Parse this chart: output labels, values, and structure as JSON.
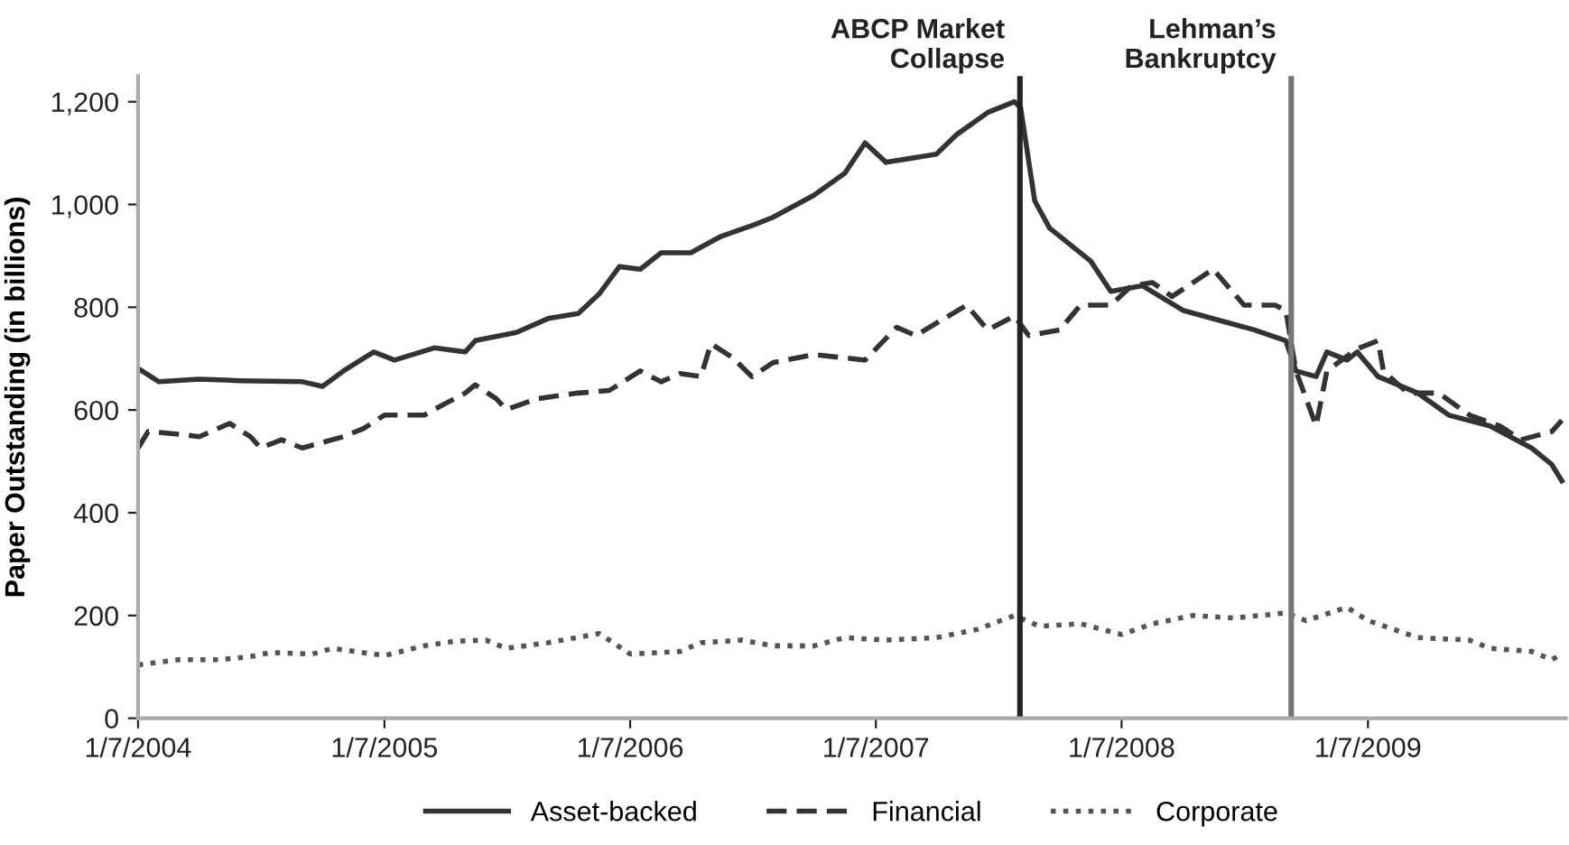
{
  "chart_data": {
    "type": "line",
    "ylabel": "Paper Outstanding (in billions)",
    "xlim": [
      "2004-01-07",
      "2009-10-28"
    ],
    "ylim": [
      0,
      1250
    ],
    "xticks": [
      {
        "value": "2004-01-07",
        "label": "1/7/2004"
      },
      {
        "value": "2005-01-07",
        "label": "1/7/2005"
      },
      {
        "value": "2006-01-07",
        "label": "1/7/2006"
      },
      {
        "value": "2007-01-07",
        "label": "1/7/2007"
      },
      {
        "value": "2008-01-07",
        "label": "1/7/2008"
      },
      {
        "value": "2009-01-07",
        "label": "1/7/2009"
      }
    ],
    "yticks": [
      0,
      200,
      400,
      600,
      800,
      {
        "value": 1000,
        "label": "1,000"
      },
      {
        "value": 1200,
        "label": "1,200"
      }
    ],
    "grid": false,
    "legend": "bottom",
    "marker": "none",
    "ref_lines": [
      {
        "axis": "x",
        "value": "2007-08-09",
        "label": "ABCP Market\nCollapse",
        "color": "#222222",
        "line_style": "solid"
      },
      {
        "axis": "x",
        "value": "2008-09-15",
        "label": "Lehman’s\nBankruptcy",
        "color": "#777777",
        "line_style": "solid"
      }
    ],
    "series": [
      {
        "name": "Asset-backed",
        "color": "#333333",
        "line_style": "solid",
        "x": [
          "2004-01-07",
          "2004-02-07",
          "2004-04-07",
          "2004-06-07",
          "2004-09-07",
          "2004-10-07",
          "2004-11-07",
          "2004-12-22",
          "2005-01-22",
          "2005-03-22",
          "2005-05-07",
          "2005-05-22",
          "2005-07-22",
          "2005-09-07",
          "2005-10-22",
          "2005-11-22",
          "2005-12-22",
          "2006-01-22",
          "2006-02-22",
          "2006-04-07",
          "2006-05-22",
          "2006-07-07",
          "2006-08-07",
          "2006-10-07",
          "2006-11-22",
          "2006-12-22",
          "2007-01-22",
          "2007-04-07",
          "2007-05-07",
          "2007-06-22",
          "2007-08-01",
          "2007-08-10",
          "2007-08-31",
          "2007-09-22",
          "2007-11-22",
          "2007-12-22",
          "2008-02-07",
          "2008-04-07",
          "2008-06-07",
          "2008-07-22",
          "2008-09-07",
          "2008-09-22",
          "2008-10-22",
          "2008-11-07",
          "2008-12-07",
          "2008-12-22",
          "2009-01-22",
          "2009-03-22",
          "2009-05-07",
          "2009-07-07",
          "2009-09-07",
          "2009-10-07",
          "2009-10-22"
        ],
        "values": [
          681,
          655,
          660,
          657,
          655,
          646,
          676,
          713,
          697,
          721,
          713,
          735,
          751,
          778,
          788,
          826,
          879,
          874,
          906,
          906,
          938,
          959,
          975,
          1018,
          1061,
          1120,
          1082,
          1098,
          1136,
          1179,
          1200,
          1189,
          1007,
          954,
          890,
          831,
          842,
          794,
          772,
          756,
          735,
          676,
          665,
          713,
          697,
          713,
          665,
          633,
          590,
          569,
          526,
          494,
          462
        ]
      },
      {
        "name": "Financial",
        "color": "#333333",
        "line_style": "dashed",
        "x": [
          "2004-01-07",
          "2004-01-22",
          "2004-03-07",
          "2004-04-07",
          "2004-05-22",
          "2004-06-22",
          "2004-07-07",
          "2004-08-07",
          "2004-09-07",
          "2004-10-07",
          "2004-11-07",
          "2004-12-07",
          "2005-01-07",
          "2005-03-07",
          "2005-03-22",
          "2005-05-07",
          "2005-05-22",
          "2005-06-22",
          "2005-07-07",
          "2005-08-22",
          "2005-10-22",
          "2005-12-07",
          "2006-01-22",
          "2006-02-22",
          "2006-03-22",
          "2006-04-22",
          "2006-05-07",
          "2006-06-07",
          "2006-07-07",
          "2006-08-07",
          "2006-10-07",
          "2006-12-22",
          "2007-02-07",
          "2007-03-07",
          "2007-05-22",
          "2007-06-22",
          "2007-08-01",
          "2007-08-22",
          "2007-10-07",
          "2007-11-07",
          "2007-12-22",
          "2008-01-22",
          "2008-02-22",
          "2008-03-22",
          "2008-05-22",
          "2008-07-07",
          "2008-08-22",
          "2008-09-07",
          "2008-09-22",
          "2008-10-22",
          "2008-11-07",
          "2008-12-22",
          "2009-01-22",
          "2009-01-30",
          "2009-03-07",
          "2009-04-22",
          "2009-06-07",
          "2009-07-22",
          "2009-08-22",
          "2009-10-07",
          "2009-10-22"
        ],
        "values": [
          526,
          558,
          553,
          548,
          574,
          548,
          526,
          542,
          526,
          537,
          548,
          564,
          590,
          590,
          601,
          633,
          649,
          622,
          601,
          622,
          633,
          638,
          676,
          655,
          671,
          665,
          729,
          703,
          665,
          692,
          708,
          697,
          761,
          745,
          804,
          756,
          783,
          745,
          756,
          804,
          804,
          842,
          848,
          821,
          874,
          804,
          804,
          794,
          676,
          569,
          676,
          719,
          735,
          676,
          633,
          633,
          590,
          569,
          542,
          558,
          580
        ]
      },
      {
        "name": "Corporate",
        "color": "#555555",
        "line_style": "dotted",
        "x": [
          "2004-01-07",
          "2004-03-07",
          "2004-05-07",
          "2004-06-22",
          "2004-07-22",
          "2004-09-22",
          "2004-10-22",
          "2005-01-07",
          "2005-03-07",
          "2005-04-22",
          "2005-06-07",
          "2005-07-07",
          "2005-09-07",
          "2005-11-22",
          "2006-01-07",
          "2006-03-22",
          "2006-04-22",
          "2006-06-22",
          "2006-08-07",
          "2006-10-07",
          "2006-11-22",
          "2007-01-22",
          "2007-04-07",
          "2007-06-07",
          "2007-08-01",
          "2007-09-07",
          "2007-11-07",
          "2008-01-07",
          "2008-02-22",
          "2008-04-22",
          "2008-06-22",
          "2008-09-07",
          "2008-10-07",
          "2008-12-07",
          "2009-01-07",
          "2009-03-22",
          "2009-06-07",
          "2009-07-07",
          "2009-09-07",
          "2009-10-07",
          "2009-10-22"
        ],
        "values": [
          104,
          114,
          114,
          120,
          128,
          125,
          136,
          122,
          141,
          150,
          152,
          136,
          147,
          165,
          125,
          130,
          147,
          152,
          141,
          141,
          157,
          152,
          157,
          173,
          200,
          179,
          184,
          163,
          184,
          200,
          195,
          205,
          190,
          216,
          190,
          157,
          152,
          136,
          130,
          114,
          125
        ]
      }
    ]
  }
}
